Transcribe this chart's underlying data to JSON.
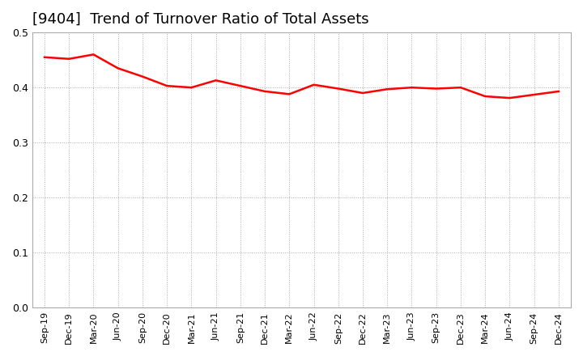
{
  "title": "[9404]  Trend of Turnover Ratio of Total Assets",
  "title_fontsize": 13,
  "line_color": "#FF0000",
  "line_width": 1.8,
  "background_color": "#FFFFFF",
  "grid_color": "#AAAAAA",
  "ylim": [
    0.0,
    0.5
  ],
  "yticks": [
    0.0,
    0.1,
    0.2,
    0.3,
    0.4,
    0.5
  ],
  "labels": [
    "Sep-19",
    "Dec-19",
    "Mar-20",
    "Jun-20",
    "Sep-20",
    "Dec-20",
    "Mar-21",
    "Jun-21",
    "Sep-21",
    "Dec-21",
    "Mar-22",
    "Jun-22",
    "Sep-22",
    "Dec-22",
    "Mar-23",
    "Jun-23",
    "Sep-23",
    "Dec-23",
    "Mar-24",
    "Jun-24",
    "Sep-24",
    "Dec-24"
  ],
  "values": [
    0.455,
    0.452,
    0.46,
    0.435,
    0.42,
    0.403,
    0.4,
    0.413,
    0.403,
    0.393,
    0.388,
    0.405,
    0.398,
    0.39,
    0.397,
    0.4,
    0.398,
    0.4,
    0.384,
    0.381,
    0.387,
    0.393
  ]
}
